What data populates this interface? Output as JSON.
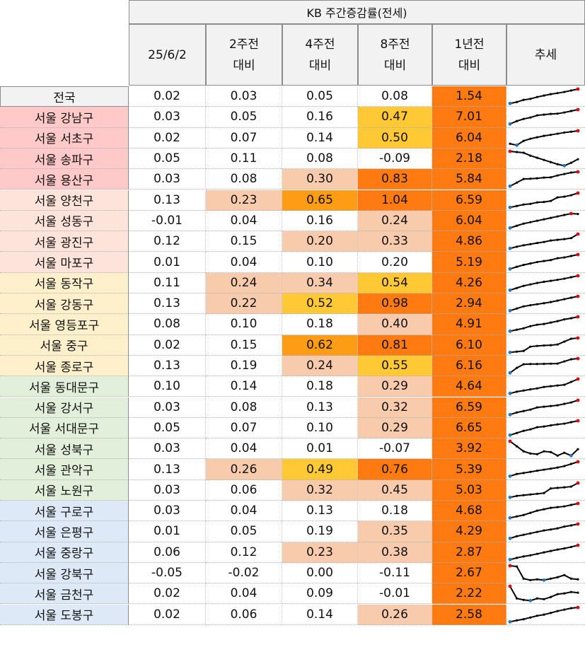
{
  "header": {
    "group_title": "KB 주간증감률(전세)",
    "columns": [
      {
        "line1": "25/6/2",
        "line2": ""
      },
      {
        "line1": "2주전",
        "line2": "대비"
      },
      {
        "line1": "4주전",
        "line2": "대비"
      },
      {
        "line1": "8주전",
        "line2": "대비"
      },
      {
        "line1": "1년전",
        "line2": "대비"
      },
      {
        "line1": "추세",
        "line2": ""
      }
    ]
  },
  "colors": {
    "group_seoul_top": "#ffc9c9",
    "group_2": "#fde3d9",
    "group_3": "#fff0cc",
    "group_4": "#e2efda",
    "group_5": "#dde9f6",
    "heat_light": "#f8cbad",
    "heat_yellow": "#ffc835",
    "heat_orange": "#ff9c16",
    "heat_deep": "#ff7a10",
    "spark_line": "#000000",
    "spark_high": "#e8000b",
    "spark_low": "#1f77c4"
  },
  "rows": [
    {
      "name": "전국",
      "group": "nation",
      "values": [
        "0.02",
        "0.03",
        "0.05",
        "0.08",
        "1.54"
      ],
      "heat": [
        "",
        "",
        "",
        "",
        "deep"
      ],
      "trend": [
        0.0,
        0.1,
        0.25,
        0.32,
        0.45,
        0.55,
        0.65,
        0.72,
        0.8,
        0.9,
        1.0
      ]
    },
    {
      "name": "서울 강남구",
      "group": "g1",
      "values": [
        "0.03",
        "0.05",
        "0.16",
        "0.47",
        "7.01"
      ],
      "heat": [
        "",
        "",
        "",
        "yellow",
        "deep"
      ],
      "trend": [
        0.0,
        0.2,
        0.35,
        0.45,
        0.6,
        0.65,
        0.7,
        0.72,
        0.8,
        0.9,
        1.0
      ]
    },
    {
      "name": "서울 서초구",
      "group": "g1",
      "values": [
        "0.02",
        "0.07",
        "0.14",
        "0.50",
        "6.04"
      ],
      "heat": [
        "",
        "",
        "",
        "yellow",
        "deep"
      ],
      "trend": [
        0.1,
        0.0,
        0.3,
        0.45,
        0.55,
        0.65,
        0.72,
        0.8,
        0.88,
        0.94,
        1.0
      ]
    },
    {
      "name": "서울 송파구",
      "group": "g1",
      "values": [
        "0.05",
        "0.11",
        "0.08",
        "-0.09",
        "2.18"
      ],
      "heat": [
        "",
        "",
        "",
        "",
        "deep"
      ],
      "trend": [
        1.0,
        0.95,
        0.9,
        0.7,
        0.55,
        0.4,
        0.25,
        0.1,
        0.0,
        0.2,
        0.45
      ]
    },
    {
      "name": "서울 용산구",
      "group": "g1",
      "values": [
        "0.03",
        "0.08",
        "0.30",
        "0.83",
        "5.84"
      ],
      "heat": [
        "",
        "",
        "light",
        "deep",
        "deep"
      ],
      "trend": [
        0.0,
        0.25,
        0.5,
        0.52,
        0.55,
        0.6,
        0.62,
        0.75,
        0.85,
        0.95,
        1.0
      ]
    },
    {
      "name": "서울 양천구",
      "group": "g2",
      "values": [
        "0.13",
        "0.23",
        "0.65",
        "1.04",
        "6.59"
      ],
      "heat": [
        "",
        "light",
        "orange",
        "deep",
        "deep"
      ],
      "trend": [
        0.0,
        0.1,
        0.2,
        0.25,
        0.35,
        0.38,
        0.45,
        0.7,
        0.75,
        0.85,
        1.0
      ]
    },
    {
      "name": "서울 성동구",
      "group": "g2",
      "values": [
        "-0.01",
        "0.04",
        "0.16",
        "0.24",
        "6.04"
      ],
      "heat": [
        "",
        "",
        "",
        "light",
        "deep"
      ],
      "trend": [
        0.0,
        0.15,
        0.3,
        0.4,
        0.5,
        0.6,
        0.7,
        0.8,
        0.9,
        1.0,
        0.97
      ]
    },
    {
      "name": "서울 광진구",
      "group": "g2",
      "values": [
        "0.12",
        "0.15",
        "0.20",
        "0.33",
        "4.86"
      ],
      "heat": [
        "",
        "",
        "light",
        "light",
        "deep"
      ],
      "trend": [
        0.0,
        0.12,
        0.22,
        0.3,
        0.38,
        0.45,
        0.55,
        0.6,
        0.65,
        0.72,
        1.0
      ]
    },
    {
      "name": "서울 마포구",
      "group": "g2",
      "values": [
        "0.01",
        "0.04",
        "0.10",
        "0.20",
        "5.19"
      ],
      "heat": [
        "",
        "",
        "",
        "",
        "deep"
      ],
      "trend": [
        0.0,
        0.15,
        0.28,
        0.38,
        0.48,
        0.55,
        0.62,
        0.75,
        0.8,
        0.9,
        1.0
      ]
    },
    {
      "name": "서울 동작구",
      "group": "g3",
      "values": [
        "0.11",
        "0.24",
        "0.34",
        "0.54",
        "4.26"
      ],
      "heat": [
        "",
        "light",
        "light",
        "yellow",
        "deep"
      ],
      "trend": [
        0.0,
        0.15,
        0.3,
        0.4,
        0.5,
        0.58,
        0.65,
        0.72,
        0.8,
        0.9,
        1.0
      ]
    },
    {
      "name": "서울 강동구",
      "group": "g3",
      "values": [
        "0.13",
        "0.22",
        "0.52",
        "0.98",
        "2.94"
      ],
      "heat": [
        "",
        "light",
        "yellow",
        "deep",
        "deep"
      ],
      "trend": [
        0.0,
        0.15,
        0.3,
        0.38,
        0.45,
        0.52,
        0.6,
        0.7,
        0.8,
        0.9,
        1.0
      ]
    },
    {
      "name": "서울 영등포구",
      "group": "g3",
      "values": [
        "0.08",
        "0.10",
        "0.18",
        "0.40",
        "4.91"
      ],
      "heat": [
        "",
        "",
        "",
        "light",
        "deep"
      ],
      "trend": [
        0.0,
        0.1,
        0.2,
        0.35,
        0.45,
        0.5,
        0.6,
        0.7,
        0.82,
        0.9,
        1.0
      ]
    },
    {
      "name": "서울 중구",
      "group": "g3",
      "values": [
        "0.02",
        "0.15",
        "0.62",
        "0.81",
        "6.10"
      ],
      "heat": [
        "",
        "",
        "orange",
        "deep",
        "deep"
      ],
      "trend": [
        0.0,
        0.05,
        0.1,
        0.4,
        0.45,
        0.48,
        0.5,
        0.55,
        0.75,
        0.95,
        1.0
      ]
    },
    {
      "name": "서울 종로구",
      "group": "g3",
      "values": [
        "0.13",
        "0.19",
        "0.24",
        "0.55",
        "6.16"
      ],
      "heat": [
        "",
        "",
        "light",
        "yellow",
        "deep"
      ],
      "trend": [
        0.0,
        0.35,
        0.6,
        0.62,
        0.62,
        0.63,
        0.64,
        0.65,
        0.8,
        0.95,
        1.0
      ]
    },
    {
      "name": "서울 동대문구",
      "group": "g4",
      "values": [
        "0.10",
        "0.14",
        "0.18",
        "0.29",
        "4.64"
      ],
      "heat": [
        "",
        "",
        "",
        "light",
        "deep"
      ],
      "trend": [
        0.0,
        0.12,
        0.2,
        0.28,
        0.35,
        0.45,
        0.5,
        0.55,
        0.6,
        0.8,
        1.0
      ]
    },
    {
      "name": "서울 강서구",
      "group": "g4",
      "values": [
        "0.03",
        "0.08",
        "0.13",
        "0.32",
        "6.59"
      ],
      "heat": [
        "",
        "",
        "",
        "light",
        "deep"
      ],
      "trend": [
        0.0,
        0.15,
        0.25,
        0.35,
        0.5,
        0.55,
        0.6,
        0.65,
        0.75,
        0.85,
        1.0
      ]
    },
    {
      "name": "서울 서대문구",
      "group": "g4",
      "values": [
        "0.05",
        "0.07",
        "0.10",
        "0.29",
        "6.65"
      ],
      "heat": [
        "",
        "",
        "",
        "light",
        "deep"
      ],
      "trend": [
        0.0,
        0.15,
        0.3,
        0.4,
        0.55,
        0.6,
        0.68,
        0.75,
        0.8,
        0.9,
        1.0
      ]
    },
    {
      "name": "서울 성북구",
      "group": "g4",
      "values": [
        "0.03",
        "0.04",
        "0.01",
        "-0.07",
        "3.92"
      ],
      "heat": [
        "",
        "",
        "",
        "",
        "deep"
      ],
      "trend": [
        1.0,
        0.65,
        0.3,
        0.15,
        0.1,
        0.3,
        0.25,
        0.0,
        0.2,
        0.0,
        0.45
      ]
    },
    {
      "name": "서울 관악구",
      "group": "g4",
      "values": [
        "0.13",
        "0.26",
        "0.49",
        "0.76",
        "5.39"
      ],
      "heat": [
        "",
        "light",
        "yellow",
        "deep",
        "deep"
      ],
      "trend": [
        0.0,
        0.15,
        0.22,
        0.3,
        0.38,
        0.45,
        0.52,
        0.6,
        0.7,
        0.85,
        1.0
      ]
    },
    {
      "name": "서울 노원구",
      "group": "g4",
      "values": [
        "0.03",
        "0.06",
        "0.32",
        "0.45",
        "5.03"
      ],
      "heat": [
        "",
        "",
        "light",
        "light",
        "deep"
      ],
      "trend": [
        0.0,
        0.1,
        0.15,
        0.2,
        0.25,
        0.3,
        0.62,
        0.66,
        0.7,
        0.75,
        1.0
      ]
    },
    {
      "name": "서울 구로구",
      "group": "g5",
      "values": [
        "0.03",
        "0.04",
        "0.13",
        "0.18",
        "4.68"
      ],
      "heat": [
        "",
        "",
        "",
        "",
        "deep"
      ],
      "trend": [
        0.0,
        0.1,
        0.2,
        0.35,
        0.5,
        0.6,
        0.7,
        0.75,
        0.8,
        0.9,
        1.0
      ]
    },
    {
      "name": "서울 은평구",
      "group": "g5",
      "values": [
        "0.01",
        "0.05",
        "0.19",
        "0.35",
        "4.29"
      ],
      "heat": [
        "",
        "",
        "",
        "light",
        "deep"
      ],
      "trend": [
        0.0,
        0.15,
        0.25,
        0.35,
        0.45,
        0.55,
        0.62,
        0.7,
        0.82,
        0.9,
        1.0
      ]
    },
    {
      "name": "서울 중랑구",
      "group": "g5",
      "values": [
        "0.06",
        "0.12",
        "0.23",
        "0.38",
        "2.87"
      ],
      "heat": [
        "",
        "",
        "light",
        "light",
        "deep"
      ],
      "trend": [
        0.0,
        0.12,
        0.22,
        0.3,
        0.4,
        0.5,
        0.6,
        0.7,
        0.78,
        0.88,
        1.0
      ]
    },
    {
      "name": "서울 강북구",
      "group": "g5",
      "values": [
        "-0.05",
        "-0.02",
        "0.00",
        "-0.11",
        "2.67"
      ],
      "heat": [
        "",
        "",
        "",
        "",
        "deep"
      ],
      "trend": [
        1.0,
        0.95,
        0.1,
        0.0,
        0.05,
        0.0,
        0.1,
        0.2,
        0.35,
        0.1,
        0.05
      ]
    },
    {
      "name": "서울 금천구",
      "group": "g5",
      "values": [
        "0.02",
        "0.04",
        "0.09",
        "-0.01",
        "2.22"
      ],
      "heat": [
        "",
        "",
        "",
        "",
        "deep"
      ],
      "trend": [
        1.0,
        0.15,
        0.05,
        0.0,
        0.15,
        0.1,
        0.25,
        0.45,
        0.5,
        0.6,
        0.55
      ]
    },
    {
      "name": "서울 도봉구",
      "group": "g5",
      "values": [
        "0.02",
        "0.06",
        "0.14",
        "0.26",
        "2.58"
      ],
      "heat": [
        "",
        "",
        "",
        "light",
        "deep"
      ],
      "trend": [
        0.0,
        0.1,
        0.18,
        0.3,
        0.42,
        0.5,
        0.62,
        0.75,
        0.85,
        0.95,
        1.0
      ]
    }
  ]
}
